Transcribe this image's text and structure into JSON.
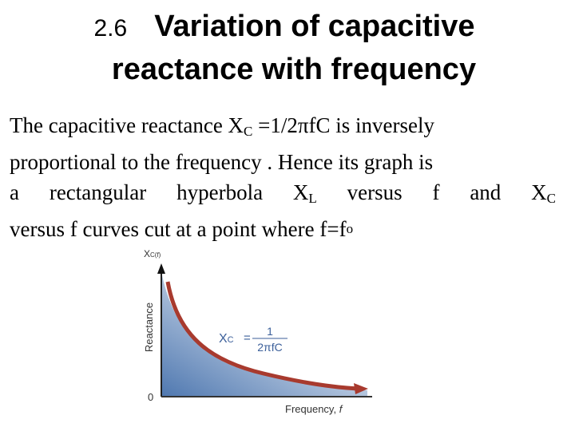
{
  "title": {
    "number": "2.6",
    "line1": "Variation of capacitive",
    "line2": "reactance with frequency"
  },
  "body": {
    "line1": [
      "The capacitive reactance X",
      "C",
      " =1/2πfC is inversely"
    ],
    "line2": "proportional to the frequency . Hence its graph is",
    "line3": [
      "a",
      "rectangular",
      "hyperbola",
      "X",
      "L",
      "versus",
      "f",
      "and",
      "X",
      "C"
    ],
    "line4": [
      "versus f curves cut at a point where f=f",
      "o"
    ]
  },
  "figure": {
    "y_axis_label": "Reactance",
    "y_axis_symbol": "X",
    "y_axis_symbol_sub": "C(f)",
    "origin_label": "0",
    "x_axis_label": "Frequency, ",
    "x_axis_symbol": "f",
    "formula_lhs": "X",
    "formula_lhs_sub": "C",
    "formula_eq": "=",
    "formula_num": "1",
    "formula_den": "2πfC",
    "curve_color": "#a83a2e",
    "fill_color": "#4f78b0",
    "formula_color": "#3b5f9a"
  }
}
